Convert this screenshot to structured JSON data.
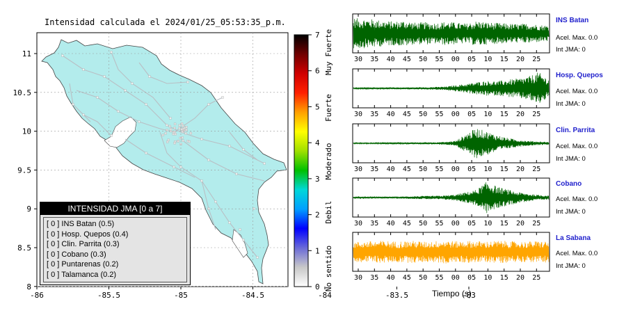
{
  "map": {
    "title": "Intensidad calculada el 2024/01/25_05:53:35_p.m.",
    "x_ticks": [
      "-86",
      "-85.5",
      "-85",
      "-84.5",
      "-84",
      "-83.5",
      "-83"
    ],
    "y_ticks": [
      "11",
      "10.5",
      "10",
      "9.5",
      "9",
      "8.5",
      "8"
    ],
    "colors": {
      "land": "#b3ecec",
      "sea": "#ffffff",
      "roads": "#b9bfc4",
      "towns": "#e8e8e8"
    }
  },
  "colorbar": {
    "ticks": [
      "0",
      "1",
      "2",
      "3",
      "4",
      "5",
      "6",
      "7"
    ],
    "labels": [
      "No sentido",
      "Debil",
      "Moderado",
      "Fuerte",
      "Muy Fuerte"
    ],
    "gradient": [
      "#ffffff",
      "#c8c8c8",
      "#6a6ad8",
      "#0000ff",
      "#00a0ff",
      "#00d8d8",
      "#00c000",
      "#a0e000",
      "#ffff00",
      "#ffa000",
      "#ff2000",
      "#d00000",
      "#700000",
      "#000000"
    ]
  },
  "legend": {
    "title": "INTENSIDAD JMA [0 a 7]",
    "entries": [
      {
        "code": "[ 0 ]",
        "text": "INS Batan (0.5)"
      },
      {
        "code": "[ 0 ]",
        "text": "Hosp. Quepos (0.4)"
      },
      {
        "code": "[ 0 ]",
        "text": "Clin. Parrita (0.3)"
      },
      {
        "code": "[ 0 ]",
        "text": "Cobano (0.3)"
      },
      {
        "code": "[ 0 ]",
        "text": "Puntarenas (0.2)"
      },
      {
        "code": "[ 0 ]",
        "text": "Talamanca (0.2)"
      }
    ]
  },
  "chart_data": {
    "type": "line",
    "x_ticks": [
      "30",
      "35",
      "40",
      "45",
      "50",
      "55",
      "00",
      "05",
      "10",
      "15",
      "20",
      "25"
    ],
    "xlabel": "Tiempo (s)",
    "series": [
      {
        "name": "INS Batan",
        "accel": "Acel. Max. 0.0",
        "int": "Int JMA: 0",
        "color": "#006400",
        "envelope": [
          0.85,
          0.82,
          0.78,
          0.7,
          0.66,
          0.72,
          0.6,
          0.62,
          0.58,
          0.66,
          0.6,
          0.55,
          0.7,
          0.62,
          0.58,
          0.55,
          0.52,
          0.56,
          0.48,
          0.45
        ]
      },
      {
        "name": "Hosp. Quepos",
        "accel": "Acel. Max. 0.0",
        "int": "Int JMA: 0",
        "color": "#006400",
        "envelope": [
          0.04,
          0.04,
          0.04,
          0.05,
          0.05,
          0.05,
          0.06,
          0.06,
          0.08,
          0.1,
          0.18,
          0.25,
          0.35,
          0.42,
          0.4,
          0.48,
          0.55,
          0.65,
          0.9,
          0.5
        ]
      },
      {
        "name": "Clin. Parrita",
        "accel": "Acel. Max. 0.0",
        "int": "Int JMA: 0",
        "color": "#006400",
        "envelope": [
          0.03,
          0.03,
          0.03,
          0.04,
          0.04,
          0.04,
          0.05,
          0.05,
          0.06,
          0.08,
          0.15,
          0.55,
          0.85,
          0.65,
          0.45,
          0.3,
          0.2,
          0.14,
          0.1,
          0.08
        ]
      },
      {
        "name": "Cobano",
        "accel": "Acel. Max. 0.0",
        "int": "Int JMA: 0",
        "color": "#006400",
        "envelope": [
          0.04,
          0.04,
          0.04,
          0.05,
          0.05,
          0.06,
          0.08,
          0.09,
          0.1,
          0.12,
          0.18,
          0.3,
          0.45,
          0.9,
          0.6,
          0.45,
          0.3,
          0.22,
          0.15,
          0.12
        ]
      },
      {
        "name": "La Sabana",
        "accel": "Acel. Max. 0.0",
        "int": "Int JMA: 0",
        "color": "#ffa500",
        "envelope": [
          0.55,
          0.58,
          0.6,
          0.62,
          0.58,
          0.6,
          0.62,
          0.56,
          0.6,
          0.66,
          0.58,
          0.62,
          0.6,
          0.58,
          0.62,
          0.6,
          0.56,
          0.58,
          0.6,
          0.58
        ]
      }
    ]
  }
}
